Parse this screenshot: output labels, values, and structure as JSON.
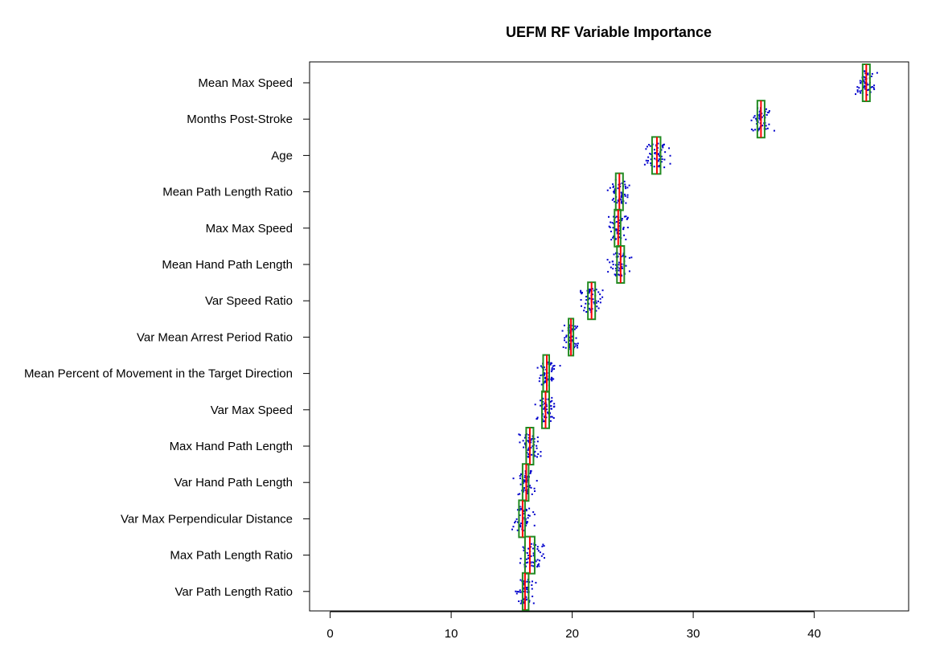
{
  "chart_data": {
    "type": "box-and-jitter",
    "title": "UEFM RF Variable Importance",
    "xlabel": "",
    "ylabel": "",
    "xlim": [
      -1.7,
      47.8
    ],
    "xticks": [
      0,
      10,
      20,
      30,
      40
    ],
    "grid": false,
    "colors": {
      "points": "#0000cc",
      "box": "#228b22",
      "median": "#ff0000",
      "axes": "#000000"
    },
    "series": [
      {
        "label": "Mean Max Speed",
        "q1": 44.0,
        "median": 44.3,
        "q3": 44.6,
        "min": 43.3,
        "max": 45.9
      },
      {
        "label": "Months Post-Stroke",
        "q1": 35.3,
        "median": 35.6,
        "q3": 35.9,
        "min": 34.7,
        "max": 36.7
      },
      {
        "label": "Age",
        "q1": 26.6,
        "median": 27.0,
        "q3": 27.3,
        "min": 26.0,
        "max": 28.1
      },
      {
        "label": "Mean Path Length Ratio",
        "q1": 23.6,
        "median": 23.9,
        "q3": 24.2,
        "min": 22.3,
        "max": 25.0
      },
      {
        "label": "Max Max Speed",
        "q1": 23.5,
        "median": 23.8,
        "q3": 24.0,
        "min": 22.8,
        "max": 24.6
      },
      {
        "label": "Mean Hand Path Length",
        "q1": 23.7,
        "median": 24.0,
        "q3": 24.3,
        "min": 22.9,
        "max": 24.9
      },
      {
        "label": "Var Speed Ratio",
        "q1": 21.3,
        "median": 21.6,
        "q3": 21.9,
        "min": 20.7,
        "max": 22.6
      },
      {
        "label": "Var Mean Arrest Period Ratio",
        "q1": 19.7,
        "median": 19.9,
        "q3": 20.1,
        "min": 19.2,
        "max": 20.6
      },
      {
        "label": "Mean Percent of Movement in the Target Direction",
        "q1": 17.6,
        "median": 17.9,
        "q3": 18.1,
        "min": 17.0,
        "max": 19.0
      },
      {
        "label": "Var Max Speed",
        "q1": 17.5,
        "median": 17.8,
        "q3": 18.1,
        "min": 16.9,
        "max": 18.8
      },
      {
        "label": "Max Hand Path Length",
        "q1": 16.2,
        "median": 16.5,
        "q3": 16.8,
        "min": 15.6,
        "max": 17.4
      },
      {
        "label": "Var Hand Path Length",
        "q1": 15.9,
        "median": 16.2,
        "q3": 16.4,
        "min": 15.1,
        "max": 17.4
      },
      {
        "label": "Var Max Perpendicular Distance",
        "q1": 15.6,
        "median": 15.9,
        "q3": 16.1,
        "min": 14.9,
        "max": 16.9
      },
      {
        "label": "Max Path Length Ratio",
        "q1": 16.1,
        "median": 16.5,
        "q3": 16.9,
        "min": 15.7,
        "max": 17.8
      },
      {
        "label": "Var Path Length Ratio",
        "q1": 15.9,
        "median": 16.1,
        "q3": 16.4,
        "min": 15.3,
        "max": 17.0
      }
    ]
  }
}
